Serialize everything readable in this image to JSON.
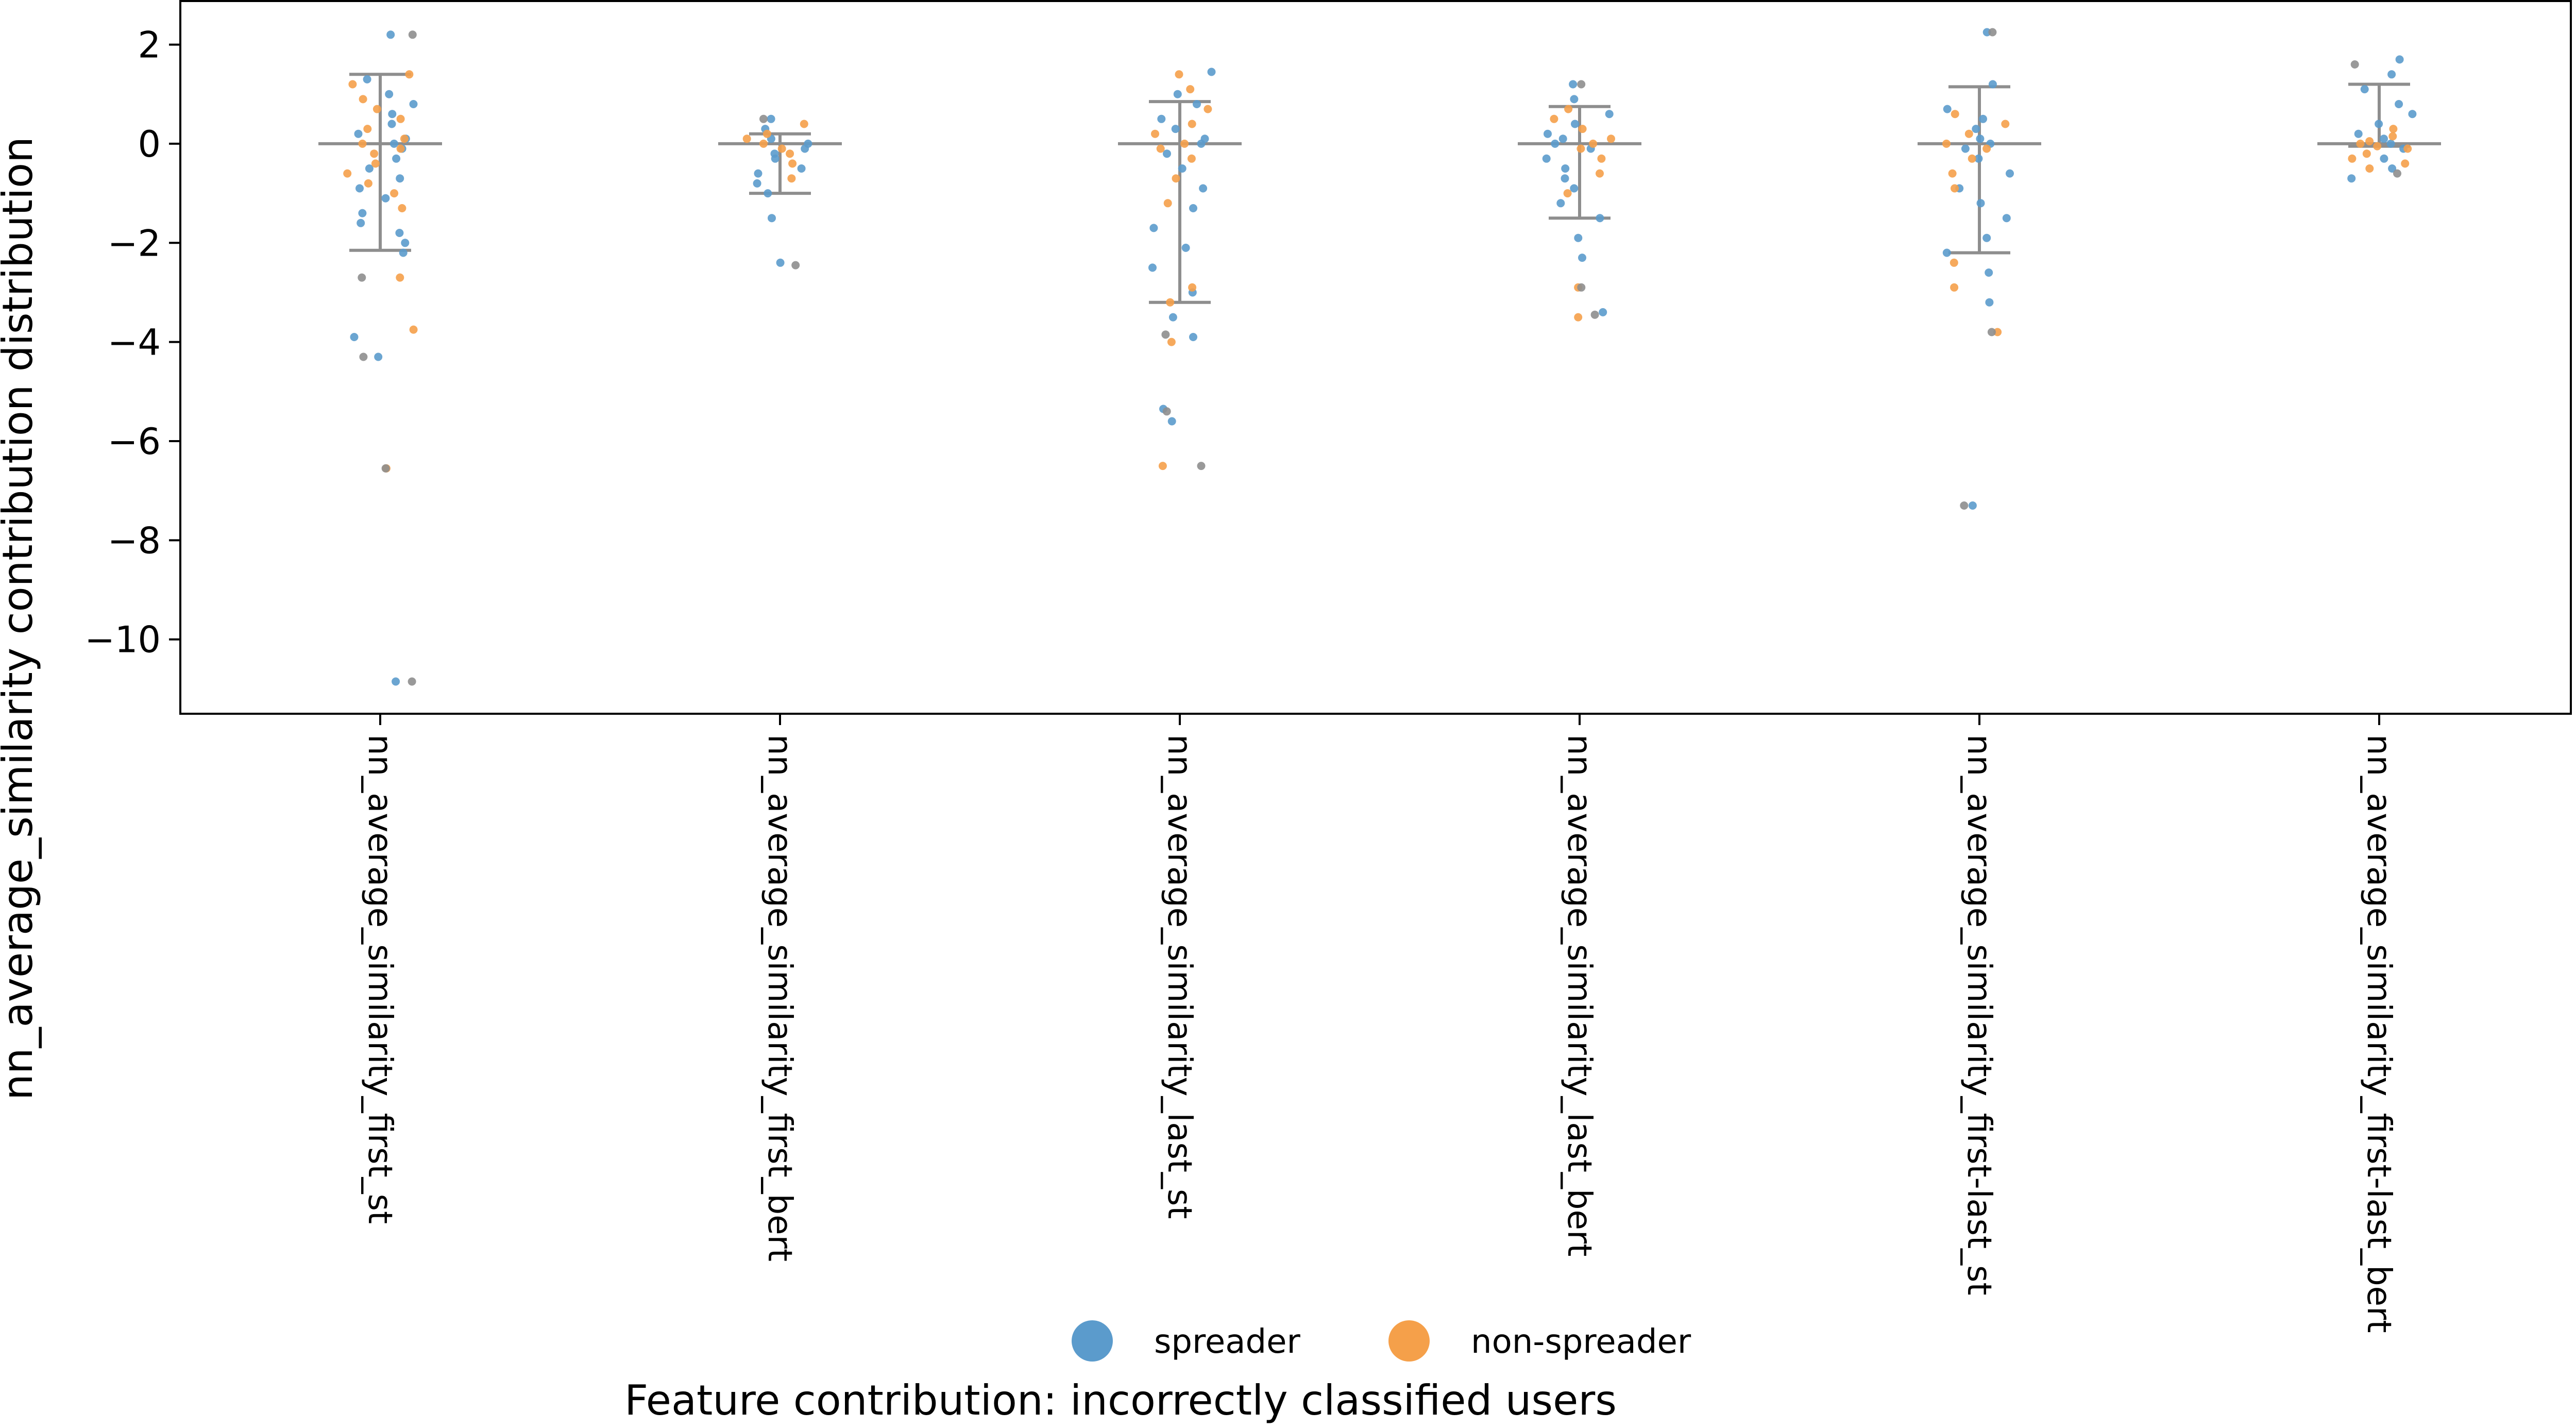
{
  "chart_data": {
    "type": "scatter",
    "subtype": "strip plot with mean and error bars",
    "title": "",
    "xlabel": "Feature contribution: incorrectly classified users",
    "ylabel": "nn_average_similarity contribution distribution",
    "ylim": [
      -11.5,
      2.9
    ],
    "yticks": [
      2,
      0,
      -2,
      -4,
      -6,
      -8,
      -10
    ],
    "ytick_labels": [
      "2",
      "0",
      "−2",
      "−4",
      "−6",
      "−8",
      "−10"
    ],
    "grid": false,
    "legend_position": "bottom-center",
    "categories": [
      "nn_average_similarity_first_st",
      "nn_average_similarity_first_bert",
      "nn_average_similarity_last_st",
      "nn_average_similarity_last_bert",
      "nn_average_similarity_first-last_st",
      "nn_average_similarity_first-last_bert"
    ],
    "summary": [
      {
        "category": "nn_average_similarity_first_st",
        "center": 0.0,
        "upper": 1.4,
        "lower": -2.15
      },
      {
        "category": "nn_average_similarity_first_bert",
        "center": 0.0,
        "upper": 0.2,
        "lower": -1.0
      },
      {
        "category": "nn_average_similarity_last_st",
        "center": 0.0,
        "upper": 0.85,
        "lower": -3.2
      },
      {
        "category": "nn_average_similarity_last_bert",
        "center": 0.0,
        "upper": 0.75,
        "lower": -1.5
      },
      {
        "category": "nn_average_similarity_first-last_st",
        "center": 0.0,
        "upper": 1.15,
        "lower": -2.2
      },
      {
        "category": "nn_average_similarity_first-last_bert",
        "center": 0.0,
        "upper": 1.2,
        "lower": -0.05
      }
    ],
    "series": [
      {
        "name": "spreader",
        "color": "#5b9bcc",
        "points": [
          [
            0,
            2.2
          ],
          [
            0,
            1.3
          ],
          [
            0,
            1.0
          ],
          [
            0,
            0.8
          ],
          [
            0,
            0.6
          ],
          [
            0,
            0.4
          ],
          [
            0,
            0.2
          ],
          [
            0,
            0.1
          ],
          [
            0,
            0.0
          ],
          [
            0,
            -0.1
          ],
          [
            0,
            -0.3
          ],
          [
            0,
            -0.5
          ],
          [
            0,
            -0.7
          ],
          [
            0,
            -0.9
          ],
          [
            0,
            -1.1
          ],
          [
            0,
            -1.4
          ],
          [
            0,
            -1.6
          ],
          [
            0,
            -1.8
          ],
          [
            0,
            -2.0
          ],
          [
            0,
            -2.2
          ],
          [
            0,
            -3.9
          ],
          [
            0,
            -4.3
          ],
          [
            0,
            -10.85
          ],
          [
            1,
            0.5
          ],
          [
            1,
            0.3
          ],
          [
            1,
            0.1
          ],
          [
            1,
            0.0
          ],
          [
            1,
            -0.1
          ],
          [
            1,
            -0.2
          ],
          [
            1,
            -0.3
          ],
          [
            1,
            -0.5
          ],
          [
            1,
            -0.6
          ],
          [
            1,
            -0.8
          ],
          [
            1,
            -1.0
          ],
          [
            1,
            -1.5
          ],
          [
            1,
            -2.4
          ],
          [
            2,
            1.45
          ],
          [
            2,
            1.0
          ],
          [
            2,
            0.8
          ],
          [
            2,
            0.5
          ],
          [
            2,
            0.3
          ],
          [
            2,
            0.1
          ],
          [
            2,
            0.0
          ],
          [
            2,
            -0.2
          ],
          [
            2,
            -0.5
          ],
          [
            2,
            -0.9
          ],
          [
            2,
            -1.3
          ],
          [
            2,
            -1.7
          ],
          [
            2,
            -2.1
          ],
          [
            2,
            -2.5
          ],
          [
            2,
            -3.0
          ],
          [
            2,
            -3.5
          ],
          [
            2,
            -3.9
          ],
          [
            2,
            -5.35
          ],
          [
            2,
            -5.6
          ],
          [
            3,
            1.2
          ],
          [
            3,
            0.9
          ],
          [
            3,
            0.6
          ],
          [
            3,
            0.4
          ],
          [
            3,
            0.2
          ],
          [
            3,
            0.1
          ],
          [
            3,
            0.0
          ],
          [
            3,
            -0.1
          ],
          [
            3,
            -0.3
          ],
          [
            3,
            -0.5
          ],
          [
            3,
            -0.7
          ],
          [
            3,
            -0.9
          ],
          [
            3,
            -1.2
          ],
          [
            3,
            -1.5
          ],
          [
            3,
            -1.9
          ],
          [
            3,
            -2.3
          ],
          [
            3,
            -3.4
          ],
          [
            4,
            2.25
          ],
          [
            4,
            1.2
          ],
          [
            4,
            0.7
          ],
          [
            4,
            0.5
          ],
          [
            4,
            0.3
          ],
          [
            4,
            0.1
          ],
          [
            4,
            0.0
          ],
          [
            4,
            -0.1
          ],
          [
            4,
            -0.3
          ],
          [
            4,
            -0.6
          ],
          [
            4,
            -0.9
          ],
          [
            4,
            -1.2
          ],
          [
            4,
            -1.5
          ],
          [
            4,
            -1.9
          ],
          [
            4,
            -2.2
          ],
          [
            4,
            -2.6
          ],
          [
            4,
            -3.2
          ],
          [
            4,
            -7.3
          ],
          [
            5,
            1.7
          ],
          [
            5,
            1.4
          ],
          [
            5,
            1.1
          ],
          [
            5,
            0.8
          ],
          [
            5,
            0.6
          ],
          [
            5,
            0.4
          ],
          [
            5,
            0.2
          ],
          [
            5,
            0.1
          ],
          [
            5,
            0.0
          ],
          [
            5,
            -0.1
          ],
          [
            5,
            -0.3
          ],
          [
            5,
            -0.5
          ],
          [
            5,
            -0.7
          ]
        ]
      },
      {
        "name": "non-spreader",
        "color": "#f5a04a",
        "points": [
          [
            0,
            1.4
          ],
          [
            0,
            1.2
          ],
          [
            0,
            0.9
          ],
          [
            0,
            0.7
          ],
          [
            0,
            0.5
          ],
          [
            0,
            0.3
          ],
          [
            0,
            0.1
          ],
          [
            0,
            0.0
          ],
          [
            0,
            -0.1
          ],
          [
            0,
            -0.2
          ],
          [
            0,
            -0.4
          ],
          [
            0,
            -0.6
          ],
          [
            0,
            -0.8
          ],
          [
            0,
            -1.0
          ],
          [
            0,
            -1.3
          ],
          [
            0,
            -2.7
          ],
          [
            0,
            -3.75
          ],
          [
            0,
            -6.55
          ],
          [
            1,
            0.4
          ],
          [
            1,
            0.2
          ],
          [
            1,
            0.1
          ],
          [
            1,
            0.0
          ],
          [
            1,
            -0.1
          ],
          [
            1,
            -0.2
          ],
          [
            1,
            -0.4
          ],
          [
            1,
            -0.7
          ],
          [
            2,
            1.4
          ],
          [
            2,
            1.1
          ],
          [
            2,
            0.7
          ],
          [
            2,
            0.4
          ],
          [
            2,
            0.2
          ],
          [
            2,
            0.0
          ],
          [
            2,
            -0.1
          ],
          [
            2,
            -0.3
          ],
          [
            2,
            -0.7
          ],
          [
            2,
            -1.2
          ],
          [
            2,
            -2.9
          ],
          [
            2,
            -3.2
          ],
          [
            2,
            -4.0
          ],
          [
            2,
            -6.5
          ],
          [
            3,
            0.7
          ],
          [
            3,
            0.5
          ],
          [
            3,
            0.3
          ],
          [
            3,
            0.1
          ],
          [
            3,
            0.0
          ],
          [
            3,
            -0.1
          ],
          [
            3,
            -0.3
          ],
          [
            3,
            -0.6
          ],
          [
            3,
            -1.0
          ],
          [
            3,
            -2.9
          ],
          [
            3,
            -3.5
          ],
          [
            4,
            0.6
          ],
          [
            4,
            0.4
          ],
          [
            4,
            0.2
          ],
          [
            4,
            0.0
          ],
          [
            4,
            -0.1
          ],
          [
            4,
            -0.3
          ],
          [
            4,
            -0.6
          ],
          [
            4,
            -0.9
          ],
          [
            4,
            -2.4
          ],
          [
            4,
            -2.9
          ],
          [
            4,
            -3.8
          ],
          [
            5,
            0.3
          ],
          [
            5,
            0.15
          ],
          [
            5,
            0.05
          ],
          [
            5,
            0.0
          ],
          [
            5,
            -0.05
          ],
          [
            5,
            -0.1
          ],
          [
            5,
            -0.2
          ],
          [
            5,
            -0.3
          ],
          [
            5,
            -0.4
          ],
          [
            5,
            -0.5
          ]
        ]
      },
      {
        "name": "",
        "color": "#8e8e8e",
        "points": [
          [
            0,
            2.2
          ],
          [
            0,
            -2.7
          ],
          [
            0,
            -4.3
          ],
          [
            0,
            -6.55
          ],
          [
            0,
            -10.85
          ],
          [
            1,
            0.5
          ],
          [
            1,
            -2.45
          ],
          [
            2,
            -5.4
          ],
          [
            2,
            -6.5
          ],
          [
            2,
            -3.85
          ],
          [
            3,
            1.2
          ],
          [
            3,
            -3.45
          ],
          [
            3,
            -2.9
          ],
          [
            4,
            2.25
          ],
          [
            4,
            -3.8
          ],
          [
            4,
            -7.3
          ],
          [
            5,
            1.6
          ],
          [
            5,
            -0.6
          ]
        ]
      }
    ],
    "legend": [
      {
        "label": "spreader",
        "color": "#5b9bcc"
      },
      {
        "label": "non-spreader",
        "color": "#f5a04a"
      }
    ]
  }
}
